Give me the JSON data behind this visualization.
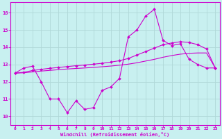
{
  "xlabel": "Windchill (Refroidissement éolien,°C)",
  "bg_color": "#c8f0f0",
  "grid_color": "#b0d8d8",
  "line_color": "#cc00cc",
  "x_ticks": [
    0,
    1,
    2,
    3,
    4,
    5,
    6,
    7,
    8,
    9,
    10,
    11,
    12,
    13,
    14,
    15,
    16,
    17,
    18,
    19,
    20,
    21,
    22,
    23
  ],
  "y_ticks": [
    10,
    11,
    12,
    13,
    14,
    15,
    16
  ],
  "ylim": [
    9.5,
    16.6
  ],
  "xlim": [
    -0.5,
    23.5
  ],
  "line1_x": [
    0,
    1,
    2,
    3,
    4,
    5,
    6,
    7,
    8,
    9,
    10,
    11,
    12,
    13,
    14,
    15,
    16,
    17,
    18,
    19,
    20,
    21,
    22,
    23
  ],
  "line1_y": [
    12.5,
    12.8,
    12.9,
    12.0,
    11.0,
    11.0,
    10.2,
    10.9,
    10.4,
    10.5,
    11.5,
    11.7,
    12.2,
    14.6,
    15.0,
    15.8,
    16.2,
    14.4,
    14.1,
    14.2,
    13.3,
    13.0,
    12.8,
    12.8
  ],
  "line2_x": [
    0,
    1,
    2,
    3,
    4,
    5,
    6,
    7,
    8,
    9,
    10,
    11,
    12,
    13,
    14,
    15,
    16,
    17,
    18,
    19,
    20,
    21,
    22,
    23
  ],
  "line2_y": [
    12.5,
    12.55,
    12.65,
    12.72,
    12.78,
    12.83,
    12.88,
    12.93,
    12.97,
    13.02,
    13.07,
    13.14,
    13.22,
    13.35,
    13.55,
    13.75,
    13.95,
    14.15,
    14.25,
    14.32,
    14.28,
    14.15,
    13.9,
    12.8
  ],
  "line3_x": [
    0,
    1,
    2,
    3,
    4,
    5,
    6,
    7,
    8,
    9,
    10,
    11,
    12,
    13,
    14,
    15,
    16,
    17,
    18,
    19,
    20,
    21,
    22,
    23
  ],
  "line3_y": [
    12.5,
    12.52,
    12.57,
    12.62,
    12.66,
    12.7,
    12.74,
    12.77,
    12.8,
    12.83,
    12.87,
    12.91,
    12.96,
    13.02,
    13.1,
    13.2,
    13.3,
    13.42,
    13.52,
    13.6,
    13.65,
    13.67,
    13.67,
    12.8
  ]
}
